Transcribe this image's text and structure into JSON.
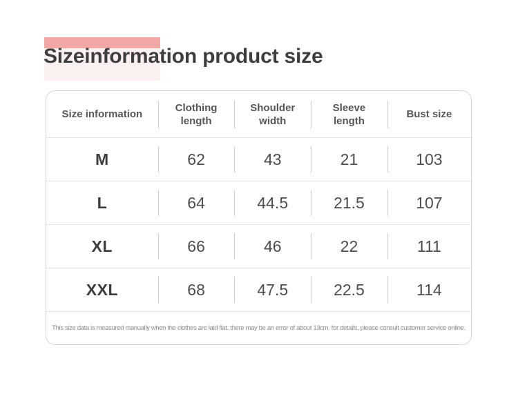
{
  "page": {
    "title": "Sizeinformation product size"
  },
  "decoration": {
    "highlight_bar_color": "#F3A6A6",
    "highlight_glow_color": "#FCF1F1"
  },
  "table": {
    "columns": [
      "Size information",
      "Clothing\nlength",
      "Shoulder\nwidth",
      "Sleeve\nlength",
      "Bust size"
    ],
    "rows": [
      {
        "size": "M",
        "values": [
          "62",
          "43",
          "21",
          "103"
        ]
      },
      {
        "size": "L",
        "values": [
          "64",
          "44.5",
          "21.5",
          "107"
        ]
      },
      {
        "size": "XL",
        "values": [
          "66",
          "46",
          "22",
          "111"
        ]
      },
      {
        "size": "XXL",
        "values": [
          "68",
          "47.5",
          "22.5",
          "114"
        ]
      }
    ],
    "note": "This size data is measured manually when the clothes are laid flat. there may be an error of about 13cm. for details, please consult customer service online."
  },
  "chart_data": {
    "type": "table",
    "title": "Sizeinformation product size",
    "categories": [
      "M",
      "L",
      "XL",
      "XXL"
    ],
    "series": [
      {
        "name": "Clothing length",
        "values": [
          62,
          64,
          66,
          68
        ]
      },
      {
        "name": "Shoulder width",
        "values": [
          43,
          44.5,
          46,
          47.5
        ]
      },
      {
        "name": "Sleeve length",
        "values": [
          21,
          21.5,
          22,
          22.5
        ]
      },
      {
        "name": "Bust size",
        "values": [
          103,
          107,
          111,
          114
        ]
      }
    ]
  },
  "colors": {
    "title_text": "#3E3E3E",
    "header_text": "#565656",
    "cell_text": "#4D4D4D",
    "note_text": "#8A8A8A",
    "card_border": "#D6D6D6",
    "row_divider": "#E3E3E3",
    "column_divider": "#CDCDCD"
  }
}
